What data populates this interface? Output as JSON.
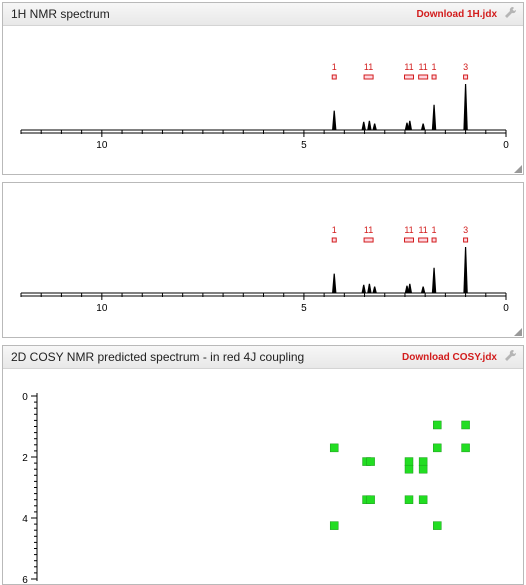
{
  "panels": {
    "nmr1": {
      "title": "1H NMR spectrum",
      "download_label": "Download 1H.jdx",
      "icons": [
        "wrench-icon",
        "resize-grip-icon"
      ]
    },
    "nmr2": {
      "icons": [
        "resize-grip-icon"
      ]
    },
    "cosy": {
      "title": "2D COSY NMR predicted spectrum - in red 4J coupling",
      "download_label": "Download COSY.jdx",
      "icons": [
        "wrench-icon"
      ]
    }
  },
  "chart_data": [
    {
      "type": "line",
      "xlim": [
        12,
        0
      ],
      "x_tick_labels": [
        "10",
        "5",
        "0"
      ],
      "peaks": [
        {
          "ppm": 4.25,
          "height": 0.42
        },
        {
          "ppm": 3.52,
          "height": 0.18
        },
        {
          "ppm": 3.38,
          "height": 0.2
        },
        {
          "ppm": 3.25,
          "height": 0.14
        },
        {
          "ppm": 2.45,
          "height": 0.16
        },
        {
          "ppm": 2.38,
          "height": 0.2
        },
        {
          "ppm": 2.05,
          "height": 0.14
        },
        {
          "ppm": 1.78,
          "height": 0.55
        },
        {
          "ppm": 1.0,
          "height": 1.0
        }
      ],
      "integrals": [
        {
          "ppm": 4.25,
          "label": "1"
        },
        {
          "ppm": 3.4,
          "label": "11"
        },
        {
          "ppm": 2.4,
          "label": "11"
        },
        {
          "ppm": 2.05,
          "label": "11"
        },
        {
          "ppm": 1.78,
          "label": "1"
        },
        {
          "ppm": 1.0,
          "label": "3"
        }
      ]
    },
    {
      "type": "line",
      "xlim": [
        12,
        0
      ],
      "x_tick_labels": [
        "10",
        "5",
        "0"
      ],
      "peaks": [
        {
          "ppm": 4.25,
          "height": 0.42
        },
        {
          "ppm": 3.52,
          "height": 0.18
        },
        {
          "ppm": 3.38,
          "height": 0.2
        },
        {
          "ppm": 3.25,
          "height": 0.14
        },
        {
          "ppm": 2.45,
          "height": 0.16
        },
        {
          "ppm": 2.38,
          "height": 0.2
        },
        {
          "ppm": 2.05,
          "height": 0.14
        },
        {
          "ppm": 1.78,
          "height": 0.55
        },
        {
          "ppm": 1.0,
          "height": 1.0
        }
      ],
      "integrals": [
        {
          "ppm": 4.25,
          "label": "1"
        },
        {
          "ppm": 3.4,
          "label": "11"
        },
        {
          "ppm": 2.4,
          "label": "11"
        },
        {
          "ppm": 2.05,
          "label": "11"
        },
        {
          "ppm": 1.78,
          "label": "1"
        },
        {
          "ppm": 1.0,
          "label": "3"
        }
      ]
    },
    {
      "type": "scatter",
      "ylim": [
        0,
        6
      ],
      "y_tick_labels": [
        "0",
        "2",
        "4",
        "6"
      ],
      "cross_peaks": [
        {
          "x": 4.25,
          "y": 1.7
        },
        {
          "x": 4.25,
          "y": 4.25
        },
        {
          "x": 3.45,
          "y": 2.15
        },
        {
          "x": 3.35,
          "y": 2.15
        },
        {
          "x": 3.45,
          "y": 3.4
        },
        {
          "x": 3.35,
          "y": 3.4
        },
        {
          "x": 2.4,
          "y": 2.15
        },
        {
          "x": 2.4,
          "y": 2.4
        },
        {
          "x": 2.4,
          "y": 3.4
        },
        {
          "x": 2.05,
          "y": 2.15
        },
        {
          "x": 2.05,
          "y": 2.4
        },
        {
          "x": 2.05,
          "y": 3.4
        },
        {
          "x": 1.7,
          "y": 0.95
        },
        {
          "x": 1.7,
          "y": 1.7
        },
        {
          "x": 1.7,
          "y": 4.25
        },
        {
          "x": 1.0,
          "y": 0.95
        },
        {
          "x": 1.0,
          "y": 1.7
        }
      ],
      "colors": {
        "cross_peak": "#22dd22"
      }
    }
  ],
  "colors": {
    "accent": "#d21c1c",
    "panel_border": "#b9b9b9"
  }
}
